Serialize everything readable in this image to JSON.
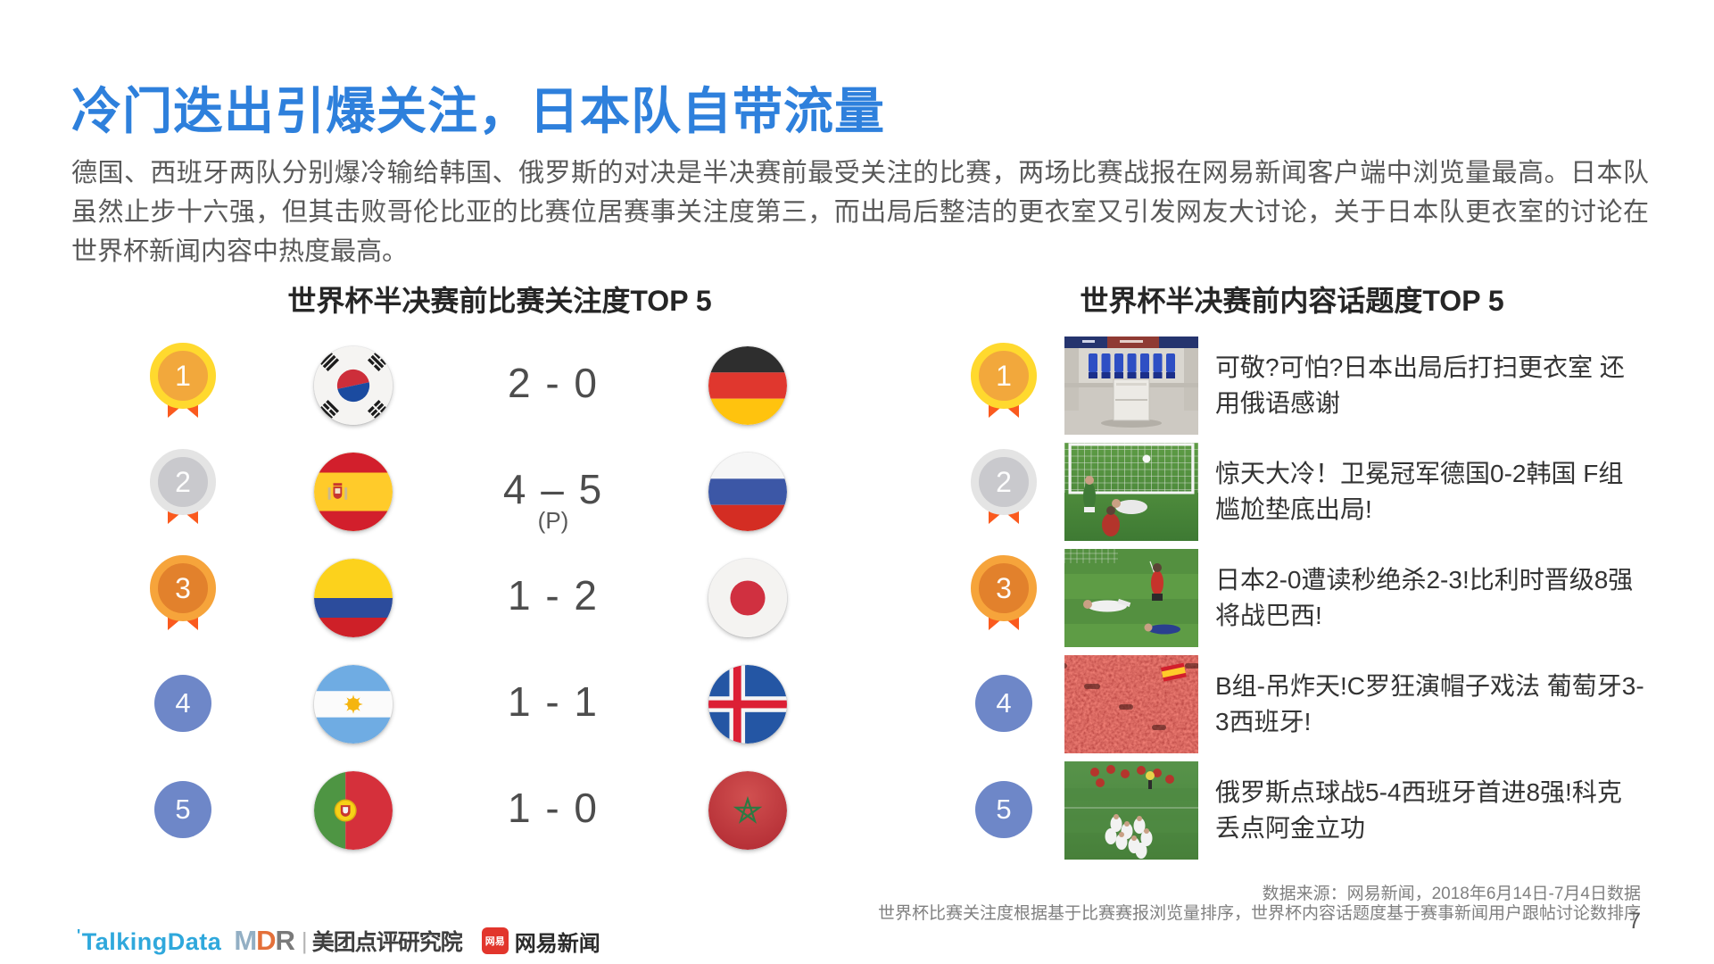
{
  "slide": {
    "title": "冷门迭出引爆关注，日本队自带流量",
    "body": "德国、西班牙两队分别爆冷输给韩国、俄罗斯的对决是半决赛前最受关注的比赛，两场比赛战报在网易新闻客户端中浏览量最高。日本队虽然止步十六强，但其击败哥伦比亚的比赛位居赛事关注度第三，而出局后整洁的更衣室又引发网友大讨论，关于日本队更衣室的讨论在世界杯新闻内容中热度最高。",
    "page_number": "7"
  },
  "match_ranking": {
    "title": "世界杯半决赛前比赛关注度TOP 5",
    "rows": [
      {
        "rank": "1",
        "rank_style": "gold",
        "home_flag": "south-korea",
        "score": "2 - 0",
        "score_note": "",
        "away_flag": "germany"
      },
      {
        "rank": "2",
        "rank_style": "silver",
        "home_flag": "spain",
        "score": "4 – 5",
        "score_note": "(P)",
        "away_flag": "russia"
      },
      {
        "rank": "3",
        "rank_style": "bronze",
        "home_flag": "colombia",
        "score": "1 - 2",
        "score_note": "",
        "away_flag": "japan"
      },
      {
        "rank": "4",
        "rank_style": "plain",
        "home_flag": "argentina",
        "score": "1 - 1",
        "score_note": "",
        "away_flag": "iceland"
      },
      {
        "rank": "5",
        "rank_style": "plain",
        "home_flag": "portugal",
        "score": "1 - 0",
        "score_note": "",
        "away_flag": "morocco"
      }
    ]
  },
  "topic_ranking": {
    "title": "世界杯半决赛前内容话题度TOP 5",
    "rows": [
      {
        "rank": "1",
        "rank_style": "gold",
        "thumbnail": "locker-room",
        "headline": "可敬?可怕?日本出局后打扫更衣室 还用俄语感谢"
      },
      {
        "rank": "2",
        "rank_style": "silver",
        "thumbnail": "goal-scene",
        "headline": "惊天大冷！卫冕冠军德国0-2韩国 F组尴尬垫底出局!"
      },
      {
        "rank": "3",
        "rank_style": "bronze",
        "thumbnail": "pitch-players",
        "headline": "日本2-0遭读秒绝杀2-3!比利时晋级8强将战巴西!"
      },
      {
        "rank": "4",
        "rank_style": "plain",
        "thumbnail": "red-crowd",
        "headline": "B组-吊炸天!C罗狂演帽子戏法 葡萄牙3-3西班牙!"
      },
      {
        "rank": "5",
        "rank_style": "plain",
        "thumbnail": "celebration",
        "headline": "俄罗斯点球战5-4西班牙首进8强!科克丢点阿金立功"
      }
    ]
  },
  "footer": {
    "source_line1": "数据来源：网易新闻，2018年6月14日-7月4日数据",
    "source_line2": "世界杯比赛关注度根据基于比赛赛报浏览量排序，世界杯内容话题度基于赛事新闻用户跟帖讨论数排序",
    "logos": {
      "talkingdata": "TalkingData",
      "mdr_m": "M",
      "mdr_d": "D",
      "mdr_r": "R",
      "mdr_label": "美团点评研究院",
      "netease_icon_text": "网易",
      "netease_label": "网易新闻"
    }
  },
  "theme": {
    "title_blue": "#2E80DC",
    "body_gray": "#595959",
    "medal_gold_ring": "#FFD92E",
    "medal_gold_fill": "#F2A83C",
    "medal_silver_ring": "#E4E4E4",
    "medal_silver_fill": "#C9C9CD",
    "medal_bronze_ring": "#F6A43B",
    "medal_bronze_fill": "#E2812C",
    "ribbon_orange": "#FA5A1E",
    "rank_circle_blue": "#6E87C8"
  }
}
